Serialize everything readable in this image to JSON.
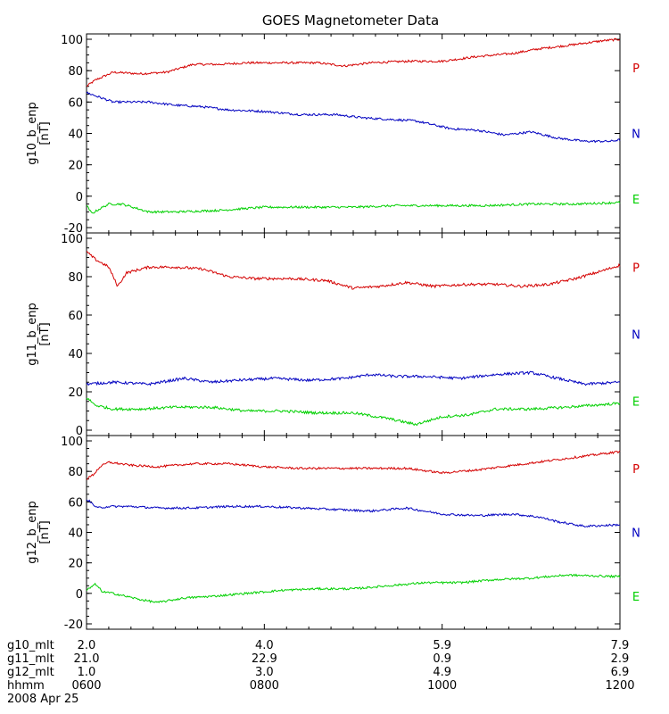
{
  "chart_data": {
    "type": "line",
    "title": "GOES Magnetometer Data",
    "x_unit_ticks": [
      "0600",
      "0800",
      "1000",
      "1200"
    ],
    "date_label": "2008 Apr 25",
    "footer_rows": [
      {
        "label": "g10_mlt",
        "values": [
          "2.0",
          "4.0",
          "5.9",
          "7.9"
        ]
      },
      {
        "label": "g11_mlt",
        "values": [
          "21.0",
          "22.9",
          "0.9",
          "2.9"
        ]
      },
      {
        "label": "g12_mlt",
        "values": [
          "1.0",
          "3.0",
          "4.9",
          "6.9"
        ]
      },
      {
        "label": "hhmm",
        "values": [
          "0600",
          "0800",
          "1000",
          "1200"
        ]
      }
    ],
    "colors": {
      "P": "#d40000",
      "N": "#0000c0",
      "E": "#00d000",
      "frame": "#000000"
    },
    "legend_labels": [
      "P",
      "N",
      "E"
    ],
    "x_range_hours": [
      6,
      12
    ],
    "panels": [
      {
        "ylabel": "g10_b_enp",
        "unit": "[nT]",
        "ylim": [
          -20,
          100
        ],
        "yticks": [
          "-20",
          "0",
          "20",
          "40",
          "60",
          "80",
          "100"
        ],
        "series": [
          {
            "name": "P",
            "t": [
              6.0,
              6.1,
              6.3,
              6.6,
              6.9,
              7.2,
              7.5,
              7.8,
              8.2,
              8.6,
              8.9,
              9.2,
              9.6,
              10.0,
              10.4,
              10.8,
              11.1,
              11.4,
              11.8,
              12.0
            ],
            "v": [
              70,
              74,
              79,
              78,
              79,
              84,
              84,
              85,
              85,
              85,
              83,
              85,
              86,
              86,
              89,
              91,
              94,
              96,
              99,
              100
            ]
          },
          {
            "name": "N",
            "t": [
              6.0,
              6.1,
              6.3,
              6.7,
              7.0,
              7.3,
              7.6,
              8.0,
              8.4,
              8.8,
              9.1,
              9.4,
              9.7,
              10.1,
              10.4,
              10.7,
              11.0,
              11.3,
              11.6,
              11.9,
              12.0
            ],
            "v": [
              66,
              64,
              60,
              60,
              58,
              57,
              55,
              54,
              52,
              52,
              50,
              49,
              48,
              43,
              42,
              39,
              41,
              37,
              35,
              35,
              36
            ]
          },
          {
            "name": "E",
            "t": [
              6.0,
              6.06,
              6.15,
              6.25,
              6.4,
              6.7,
              7.0,
              7.5,
              8.0,
              8.5,
              9.0,
              9.5,
              10.0,
              10.5,
              11.0,
              11.5,
              12.0
            ],
            "v": [
              -6,
              -11,
              -8,
              -5,
              -5,
              -10,
              -10,
              -9,
              -7,
              -7,
              -7,
              -6,
              -6,
              -6,
              -5,
              -5,
              -4
            ]
          }
        ]
      },
      {
        "ylabel": "g11_b_enp",
        "unit": "[nT]",
        "ylim": [
          0,
          100
        ],
        "yticks": [
          "0",
          "20",
          "40",
          "60",
          "80",
          "100"
        ],
        "series": [
          {
            "name": "P",
            "t": [
              6.0,
              6.1,
              6.25,
              6.35,
              6.45,
              6.7,
              7.0,
              7.3,
              7.6,
              7.9,
              8.3,
              8.7,
              9.0,
              9.3,
              9.6,
              9.9,
              10.3,
              10.6,
              10.9,
              11.2,
              11.5,
              11.8,
              12.0
            ],
            "v": [
              93,
              89,
              85,
              75,
              82,
              85,
              85,
              84,
              80,
              79,
              79,
              78,
              74,
              75,
              77,
              75,
              76,
              76,
              75,
              76,
              79,
              83,
              86
            ]
          },
          {
            "name": "N",
            "t": [
              6.0,
              6.3,
              6.7,
              7.1,
              7.4,
              7.7,
              8.1,
              8.5,
              8.9,
              9.2,
              9.5,
              9.8,
              10.2,
              10.6,
              11.0,
              11.3,
              11.6,
              12.0
            ],
            "v": [
              24,
              25,
              24,
              27,
              25,
              26,
              27,
              26,
              27,
              29,
              28,
              28,
              27,
              29,
              30,
              27,
              24,
              25
            ]
          },
          {
            "name": "E",
            "t": [
              6.0,
              6.1,
              6.3,
              6.6,
              7.0,
              7.4,
              7.8,
              8.2,
              8.6,
              9.0,
              9.4,
              9.7,
              10.0,
              10.3,
              10.6,
              11.0,
              11.4,
              12.0
            ],
            "v": [
              17,
              13,
              11,
              11,
              12,
              12,
              10,
              10,
              9,
              9,
              6,
              3,
              7,
              8,
              11,
              11,
              12,
              14
            ]
          }
        ]
      },
      {
        "ylabel": "g12_b_enp",
        "unit": "[nT]",
        "ylim": [
          -20,
          100
        ],
        "yticks": [
          "-20",
          "0",
          "20",
          "40",
          "60",
          "80",
          "100"
        ],
        "series": [
          {
            "name": "P",
            "t": [
              6.0,
              6.08,
              6.15,
              6.25,
              6.5,
              6.8,
              7.2,
              7.6,
              8.0,
              8.4,
              8.8,
              9.2,
              9.6,
              10.0,
              10.4,
              10.8,
              11.2,
              11.6,
              12.0
            ],
            "v": [
              75,
              78,
              83,
              86,
              84,
              83,
              85,
              85,
              83,
              82,
              82,
              82,
              82,
              79,
              81,
              84,
              87,
              90,
              93
            ]
          },
          {
            "name": "N",
            "t": [
              6.0,
              6.06,
              6.12,
              6.25,
              6.5,
              6.8,
              7.2,
              7.6,
              8.0,
              8.4,
              8.8,
              9.2,
              9.6,
              10.0,
              10.4,
              10.8,
              11.1,
              11.3,
              11.6,
              12.0
            ],
            "v": [
              62,
              59,
              56,
              57,
              57,
              56,
              56,
              57,
              57,
              56,
              55,
              54,
              56,
              52,
              51,
              52,
              50,
              47,
              44,
              45
            ]
          },
          {
            "name": "E",
            "t": [
              6.0,
              6.05,
              6.1,
              6.18,
              6.3,
              6.6,
              6.8,
              7.1,
              7.4,
              7.8,
              8.2,
              8.6,
              9.0,
              9.4,
              9.8,
              10.2,
              10.6,
              11.0,
              11.4,
              12.0
            ],
            "v": [
              2,
              4,
              6,
              1,
              0,
              -4,
              -6,
              -3,
              -2,
              0,
              2,
              3,
              3,
              5,
              7,
              7,
              9,
              10,
              12,
              11
            ]
          }
        ]
      }
    ]
  }
}
